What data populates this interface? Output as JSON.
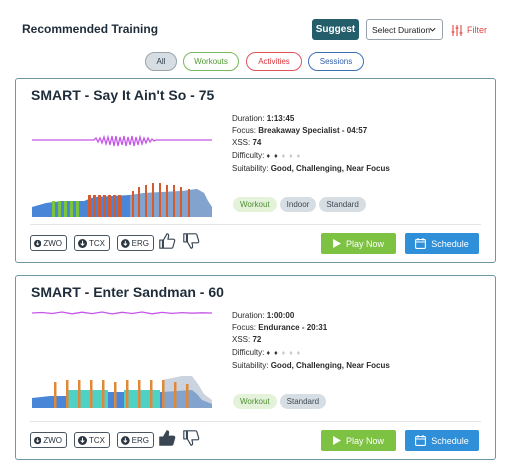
{
  "header": {
    "title": "Recommended Training",
    "suggest_label": "Suggest",
    "duration_select": "Select Duration",
    "filter_label": "Filter"
  },
  "filters": [
    {
      "label": "All",
      "active": true
    },
    {
      "label": "Workouts"
    },
    {
      "label": "Activities"
    },
    {
      "label": "Sessions"
    }
  ],
  "colors": {
    "accent": "#235e6a",
    "play": "#7dc242",
    "schedule": "#2f8fd8",
    "filter": "#e0463e",
    "workout_line": "#c557e8"
  },
  "workouts": [
    {
      "title": "SMART - Say It Ain't So - 75",
      "duration_label": "Duration:",
      "duration": "1:13:45",
      "focus_label": "Focus:",
      "focus": "Breakaway Specialist - 04:57",
      "xss_label": "XSS:",
      "xss": "74",
      "difficulty_label": "Difficulty:",
      "difficulty_filled": "♦ ♦",
      "difficulty_empty": "♦ ♦ ♦",
      "suitability_label": "Suitability:",
      "suitability": "Good, Challenging, Near Focus",
      "tags": [
        "Workout",
        "Indoor",
        "Standard"
      ],
      "downloads": [
        "ZWO",
        "TCX",
        "ERG"
      ],
      "thumb_up_active": false,
      "play_label": "Play Now",
      "schedule_label": "Schedule"
    },
    {
      "title": "SMART - Enter Sandman - 60",
      "duration_label": "Duration:",
      "duration": "1:00:00",
      "focus_label": "Focus:",
      "focus": "Endurance - 20:31",
      "xss_label": "XSS:",
      "xss": "72",
      "difficulty_label": "Difficulty:",
      "difficulty_filled": "♦ ♦",
      "difficulty_empty": "♦ ♦ ♦",
      "suitability_label": "Suitability:",
      "suitability": "Good, Challenging, Near Focus",
      "tags": [
        "Workout",
        "Standard"
      ],
      "downloads": [
        "ZWO",
        "TCX",
        "ERG"
      ],
      "thumb_up_active": true,
      "play_label": "Play Now",
      "schedule_label": "Schedule"
    }
  ]
}
